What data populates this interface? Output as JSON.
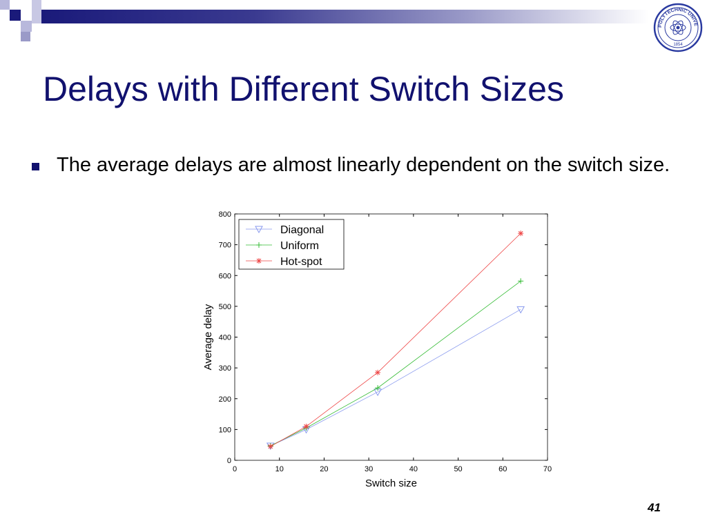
{
  "slide": {
    "title": "Delays with Different Switch Sizes",
    "bullet": "The average delays are almost linearly dependent on the switch size.",
    "page_number": "41",
    "seal_text": "POLYTECHNIC UNIVERSITY",
    "seal_year": "1854"
  },
  "colors": {
    "title": "#11116e",
    "header_dark": "#1a1a7a",
    "header_light": "#9a9ac8"
  },
  "chart_data": {
    "type": "line",
    "xlabel": "Switch size",
    "ylabel": "Average delay",
    "xlim": [
      0,
      70
    ],
    "ylim": [
      0,
      800
    ],
    "xticks": [
      0,
      10,
      20,
      30,
      40,
      50,
      60,
      70
    ],
    "yticks": [
      0,
      100,
      200,
      300,
      400,
      500,
      600,
      700,
      800
    ],
    "grid": false,
    "legend_position": "top-left",
    "series": [
      {
        "name": "Diagonal",
        "color": "#8899ee",
        "marker": "triangle-down",
        "x": [
          8,
          16,
          32,
          64
        ],
        "y": [
          47,
          100,
          222,
          490
        ]
      },
      {
        "name": "Uniform",
        "color": "#33bb33",
        "marker": "plus",
        "x": [
          8,
          16,
          32,
          64
        ],
        "y": [
          47,
          105,
          235,
          582
        ]
      },
      {
        "name": "Hot-spot",
        "color": "#ee4444",
        "marker": "star",
        "x": [
          8,
          16,
          32,
          64
        ],
        "y": [
          45,
          110,
          285,
          737
        ]
      }
    ]
  }
}
